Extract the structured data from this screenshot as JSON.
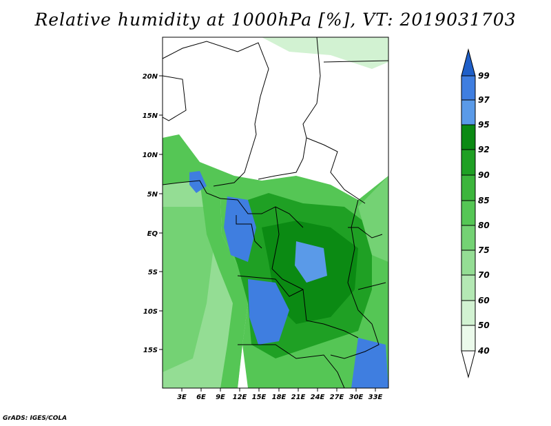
{
  "title": "Relative humidity at 1000hPa [%], VT: 2019031703",
  "credit": "GrADS: IGES/COLA",
  "map": {
    "lat_labels": [
      "20N",
      "15N",
      "10N",
      "5N",
      "EQ",
      "5S",
      "10S",
      "15S"
    ],
    "lon_labels": [
      "3E",
      "6E",
      "9E",
      "12E",
      "15E",
      "18E",
      "21E",
      "24E",
      "27E",
      "30E",
      "33E"
    ]
  },
  "colorbar": {
    "levels": [
      "99",
      "97",
      "95",
      "92",
      "90",
      "85",
      "80",
      "75",
      "70",
      "60",
      "50",
      "40"
    ],
    "colors": [
      "#1f5fc8",
      "#3f7ee0",
      "#5a9ae8",
      "#0b8a13",
      "#1fa024",
      "#3cb53c",
      "#55c655",
      "#74d274",
      "#94dd94",
      "#b4e8b4",
      "#d2f2d2",
      "#ebfaeb",
      "#ffffff"
    ]
  }
}
